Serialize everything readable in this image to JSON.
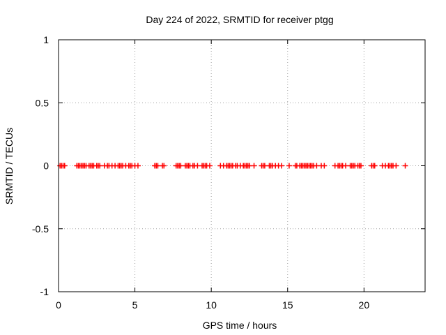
{
  "chart_data": {
    "type": "scatter",
    "title": "Day 224 of 2022, SRMTID for receiver ptgg",
    "xlabel": "GPS time / hours",
    "ylabel": "SRMTID / TECUs",
    "xlim": [
      0,
      24
    ],
    "ylim": [
      -1,
      1
    ],
    "x_ticks": [
      0,
      5,
      10,
      15,
      20
    ],
    "x_tick_labels": [
      "0",
      "5",
      "10",
      "15",
      "20"
    ],
    "y_ticks": [
      -1,
      -0.5,
      0,
      0.5,
      1
    ],
    "y_tick_labels": [
      "-1",
      "-0.5",
      "0",
      "0.5",
      "1"
    ],
    "grid": true,
    "marker": "plus",
    "color": "#ff0000",
    "series": [
      {
        "name": "SRMTID",
        "x": [
          0.1,
          0.2,
          0.3,
          0.4,
          1.2,
          1.3,
          1.4,
          1.5,
          1.6,
          1.7,
          1.8,
          2.0,
          2.1,
          2.2,
          2.3,
          2.5,
          2.6,
          2.7,
          3.0,
          3.2,
          3.3,
          3.5,
          3.7,
          3.9,
          4.0,
          4.1,
          4.2,
          4.4,
          4.6,
          4.7,
          4.8,
          5.0,
          5.2,
          6.3,
          6.4,
          6.5,
          6.8,
          6.9,
          7.7,
          7.8,
          7.9,
          8.0,
          8.3,
          8.4,
          8.5,
          8.6,
          8.8,
          8.9,
          9.1,
          9.4,
          9.5,
          9.6,
          9.7,
          9.9,
          10.6,
          10.8,
          11.0,
          11.1,
          11.2,
          11.3,
          11.4,
          11.6,
          11.7,
          11.9,
          12.1,
          12.2,
          12.3,
          12.4,
          12.5,
          12.8,
          13.3,
          13.4,
          13.5,
          13.8,
          13.9,
          14.0,
          14.2,
          14.4,
          14.6,
          15.1,
          15.5,
          15.6,
          15.8,
          15.9,
          16.0,
          16.1,
          16.2,
          16.3,
          16.4,
          16.5,
          16.6,
          16.7,
          16.9,
          17.2,
          17.4,
          18.1,
          18.3,
          18.4,
          18.5,
          18.6,
          18.8,
          19.1,
          19.2,
          19.3,
          19.4,
          19.6,
          19.7,
          19.8,
          20.5,
          20.6,
          20.7,
          21.2,
          21.4,
          21.6,
          21.7,
          21.8,
          21.9,
          22.1,
          22.7
        ],
        "y": [
          0,
          0,
          0,
          0,
          0,
          0,
          0,
          0,
          0,
          0,
          0,
          0,
          0,
          0,
          0,
          0,
          0,
          0,
          0,
          0,
          0,
          0,
          0,
          0,
          0,
          0,
          0,
          0,
          0,
          0,
          0,
          0,
          0,
          0,
          0,
          0,
          0,
          0,
          0,
          0,
          0,
          0,
          0,
          0,
          0,
          0,
          0,
          0,
          0,
          0,
          0,
          0,
          0,
          0,
          0,
          0,
          0,
          0,
          0,
          0,
          0,
          0,
          0,
          0,
          0,
          0,
          0,
          0,
          0,
          0,
          0,
          0,
          0,
          0,
          0,
          0,
          0,
          0,
          0,
          0,
          0,
          0,
          0,
          0,
          0,
          0,
          0,
          0,
          0,
          0,
          0,
          0,
          0,
          0,
          0,
          0,
          0,
          0,
          0,
          0,
          0,
          0,
          0,
          0,
          0,
          0,
          0,
          0,
          0,
          0,
          0,
          0,
          0,
          0,
          0,
          0,
          0,
          0,
          0
        ]
      }
    ]
  }
}
